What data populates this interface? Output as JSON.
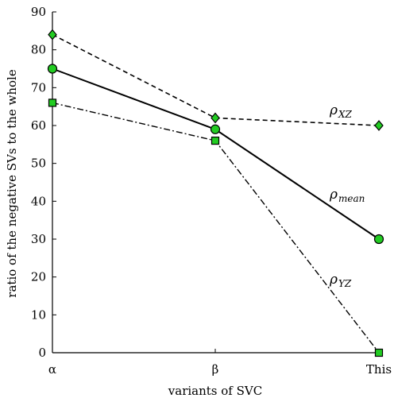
{
  "chart_data": {
    "type": "line",
    "categories": [
      "α",
      "β",
      "This"
    ],
    "xlabel": "variants of SVC",
    "ylabel": "ratio of the negative SVs to the whole",
    "ylim": [
      0,
      90
    ],
    "yticks": [
      0,
      10,
      20,
      30,
      40,
      50,
      60,
      70,
      80,
      90
    ],
    "grid": false,
    "series": [
      {
        "name": "ρXZ",
        "label_main": "ρ",
        "label_sub": "XZ",
        "values": [
          84,
          62,
          60
        ],
        "line_style": "dashed",
        "marker": "diamond",
        "color": "#000000",
        "marker_fill": "#22cc22"
      },
      {
        "name": "ρmean",
        "label_main": "ρ",
        "label_sub": "mean",
        "values": [
          75,
          59,
          30
        ],
        "line_style": "solid",
        "marker": "circle",
        "color": "#000000",
        "marker_fill": "#22cc22"
      },
      {
        "name": "ρYZ",
        "label_main": "ρ",
        "label_sub": "YZ",
        "values": [
          66,
          56,
          0
        ],
        "line_style": "dashdot",
        "marker": "square",
        "color": "#000000",
        "marker_fill": "#22cc22"
      }
    ]
  }
}
